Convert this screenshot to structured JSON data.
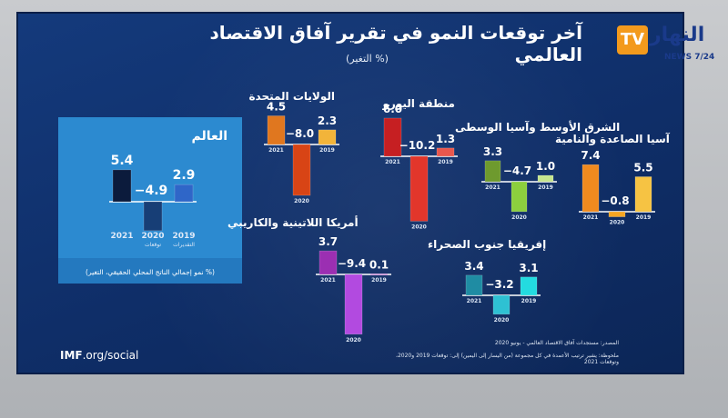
{
  "header": {
    "title": "آخر توقعات النمو في تقرير آفاق الاقتصاد العالمي",
    "subtitle": "(التغير %)"
  },
  "channel": {
    "logo_text": "TV",
    "brand": "النهار",
    "tag": "NEWS 7/24"
  },
  "world_panel": {
    "footer": "(نمو إجمالي الناتج المحلي الحقيقي، التغير %)"
  },
  "footer": {
    "source": "المصدر: مستجدات آفاق الاقتصاد العالمي - يونيو 2020",
    "note": "ملحوظة: يشير ترتيب الأعمدة في كل مجموعة (من اليسار إلى اليمين) إلى: توقعات 2019 و2020، وتوقعات 2021",
    "imf_bold": "IMF",
    "imf_rest": ".org/social"
  },
  "colors": {
    "world": [
      "#0b1b3c",
      "#173e76",
      "#2f66c8"
    ],
    "usa": [
      "#e0771f",
      "#d84415",
      "#f2b43a"
    ],
    "euro": [
      "#c61f22",
      "#e2362b",
      "#e9574d"
    ],
    "mena": [
      "#6e9a2e",
      "#8ccf3e",
      "#c6e58e"
    ],
    "asia": [
      "#f08a1f",
      "#f5a523",
      "#f6c343"
    ],
    "latam": [
      "#9b2fb2",
      "#b24ae0",
      "#cd8ad9"
    ],
    "ssa": [
      "#1f8ca3",
      "#2ec1d3",
      "#23dbe0"
    ]
  },
  "chart_data": [
    {
      "type": "bar",
      "title": "العالم",
      "categories": [
        "2021",
        "2020",
        "2019"
      ],
      "category_notes": [
        "",
        "توقعات",
        "التقديرات"
      ],
      "values": [
        5.4,
        -4.9,
        2.9
      ],
      "labels": [
        "5.4",
        "−4.9",
        "2.9"
      ]
    },
    {
      "type": "bar",
      "title": "الولايات المتحدة",
      "categories": [
        "2021",
        "2020",
        "2019"
      ],
      "values": [
        4.5,
        -8.0,
        2.3
      ],
      "labels": [
        "4.5",
        "−8.0",
        "2.3"
      ]
    },
    {
      "type": "bar",
      "title": "منطقة اليورو",
      "categories": [
        "2021",
        "2020",
        "2019"
      ],
      "values": [
        6.0,
        -10.2,
        1.3
      ],
      "labels": [
        "6.0",
        "−10.2",
        "1.3"
      ]
    },
    {
      "type": "bar",
      "title": "الشرق الأوسط وآسيا الوسطى",
      "categories": [
        "2021",
        "2020",
        "2019"
      ],
      "values": [
        3.3,
        -4.7,
        1.0
      ],
      "labels": [
        "3.3",
        "−4.7",
        "1.0"
      ]
    },
    {
      "type": "bar",
      "title": "آسيا الصاعدة والنامية",
      "categories": [
        "2021",
        "2020",
        "2019"
      ],
      "values": [
        7.4,
        -0.8,
        5.5
      ],
      "labels": [
        "7.4",
        "−0.8",
        "5.5"
      ]
    },
    {
      "type": "bar",
      "title": "أمريكا اللاتينية والكاريبي",
      "categories": [
        "2021",
        "2020",
        "2019"
      ],
      "values": [
        3.7,
        -9.4,
        0.1
      ],
      "labels": [
        "3.7",
        "−9.4",
        "0.1"
      ]
    },
    {
      "type": "bar",
      "title": "إفريقيا جنوب الصحراء",
      "categories": [
        "2021",
        "2020",
        "2019"
      ],
      "values": [
        3.4,
        -3.2,
        3.1
      ],
      "labels": [
        "3.4",
        "−3.2",
        "3.1"
      ]
    }
  ]
}
